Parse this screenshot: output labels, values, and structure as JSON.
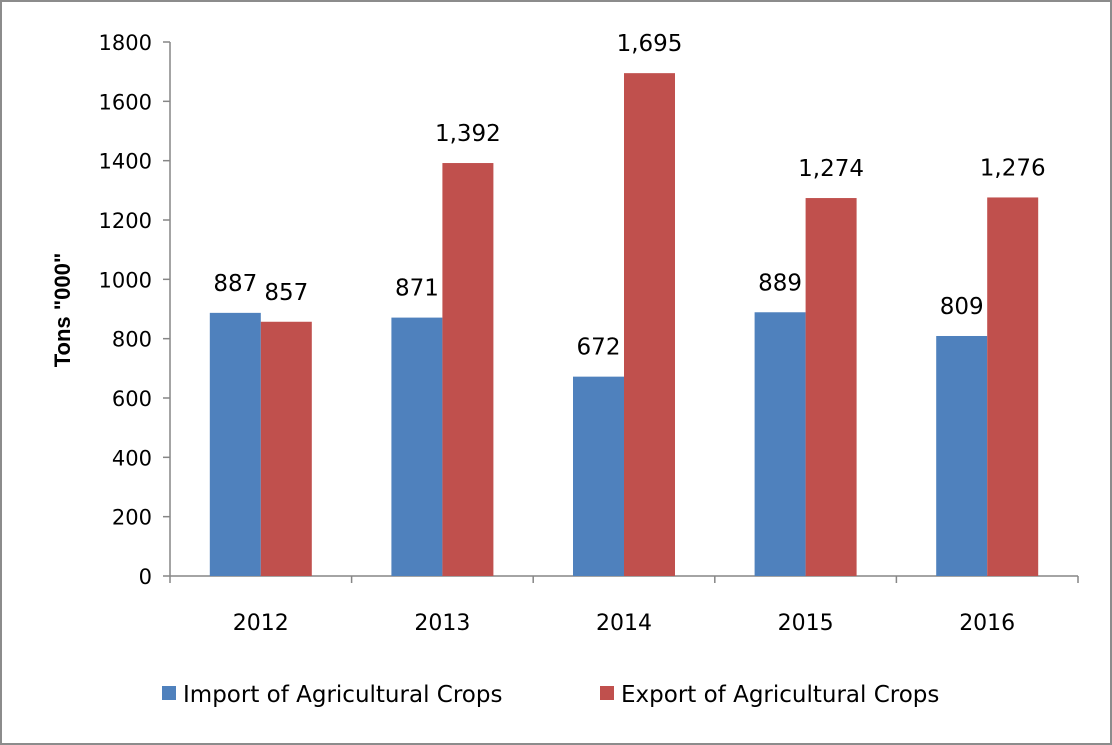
{
  "chart_data": {
    "type": "bar",
    "categories": [
      "2012",
      "2013",
      "2014",
      "2015",
      "2016"
    ],
    "series": [
      {
        "name": "Import of Agricultural Crops",
        "values": [
          887,
          871,
          672,
          889,
          809
        ],
        "labels": [
          "887",
          "871",
          "672",
          "889",
          "809"
        ],
        "color": "#4F81BD"
      },
      {
        "name": "Export of Agricultural Crops",
        "values": [
          857,
          1392,
          1695,
          1274,
          1276
        ],
        "labels": [
          "857",
          "1,392",
          "1,695",
          "1,274",
          "1,276"
        ],
        "color": "#C0504D"
      }
    ],
    "title": "",
    "xlabel": "",
    "ylabel": "Tons \"000\"",
    "ylim": [
      0,
      1800
    ],
    "yticks": [
      "0",
      "200",
      "400",
      "600",
      "800",
      "1000",
      "1200",
      "1400",
      "1600",
      "1800"
    ],
    "grid": false,
    "legend_position": "bottom"
  }
}
